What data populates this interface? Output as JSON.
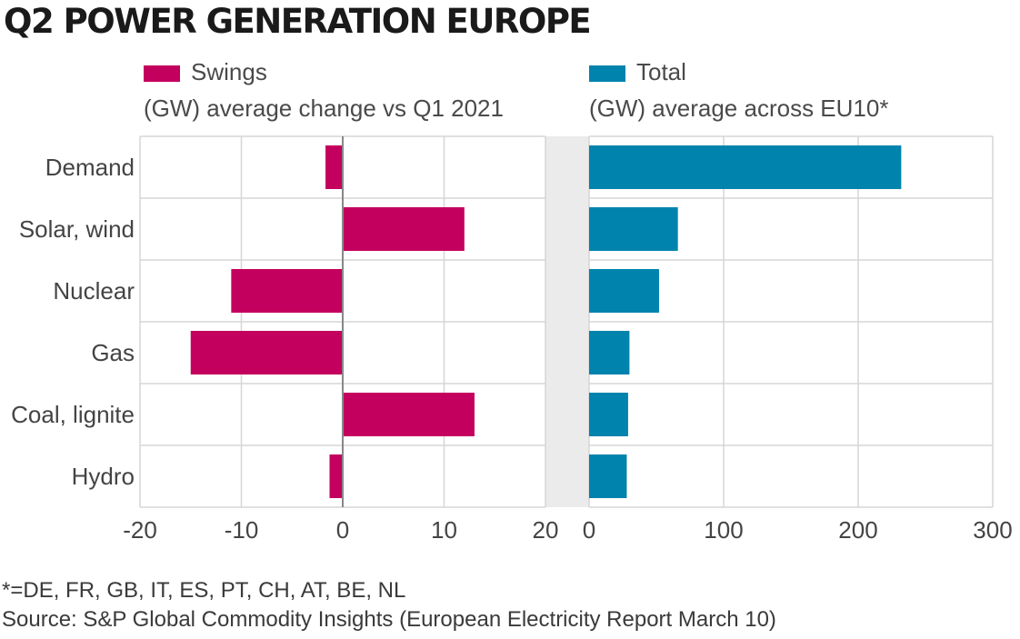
{
  "title": "Q2 POWER GENERATION EUROPE",
  "colors": {
    "swings": "#c4005e",
    "total": "#0083ad",
    "grid": "#d6d6d6",
    "gap": "#ebebeb",
    "zero_line": "#888888"
  },
  "chart_data": [
    {
      "type": "bar",
      "orientation": "horizontal",
      "legend": "Swings",
      "subtitle": "(GW) average change vs Q1 2021",
      "categories": [
        "Demand",
        "Solar, wind",
        "Nuclear",
        "Gas",
        "Coal, lignite",
        "Hydro"
      ],
      "values": [
        -1.7,
        12,
        -11,
        -15,
        13,
        -1.3
      ],
      "xlim": [
        -20,
        20
      ],
      "xticks": [
        "-20",
        "-10",
        "0",
        "10",
        "20"
      ],
      "xtick_values": [
        -20,
        -10,
        0,
        10,
        20
      ],
      "grid": true,
      "legend_position": "top-left"
    },
    {
      "type": "bar",
      "orientation": "horizontal",
      "legend": "Total",
      "subtitle": "(GW) average across EU10*",
      "categories": [
        "Demand",
        "Solar, wind",
        "Nuclear",
        "Gas",
        "Coal, lignite",
        "Hydro"
      ],
      "values": [
        232,
        66,
        52,
        30,
        29,
        28
      ],
      "xlim": [
        0,
        300
      ],
      "xticks": [
        "0",
        "100",
        "200",
        "300"
      ],
      "xtick_values": [
        0,
        100,
        200,
        300
      ],
      "grid": true,
      "legend_position": "top-right"
    }
  ],
  "footnotes": {
    "countries": "*=DE, FR, GB, IT, ES, PT, CH, AT, BE, NL",
    "source": "Source:  S&P Global Commodity Insights (European Electricity Report March 10)"
  }
}
